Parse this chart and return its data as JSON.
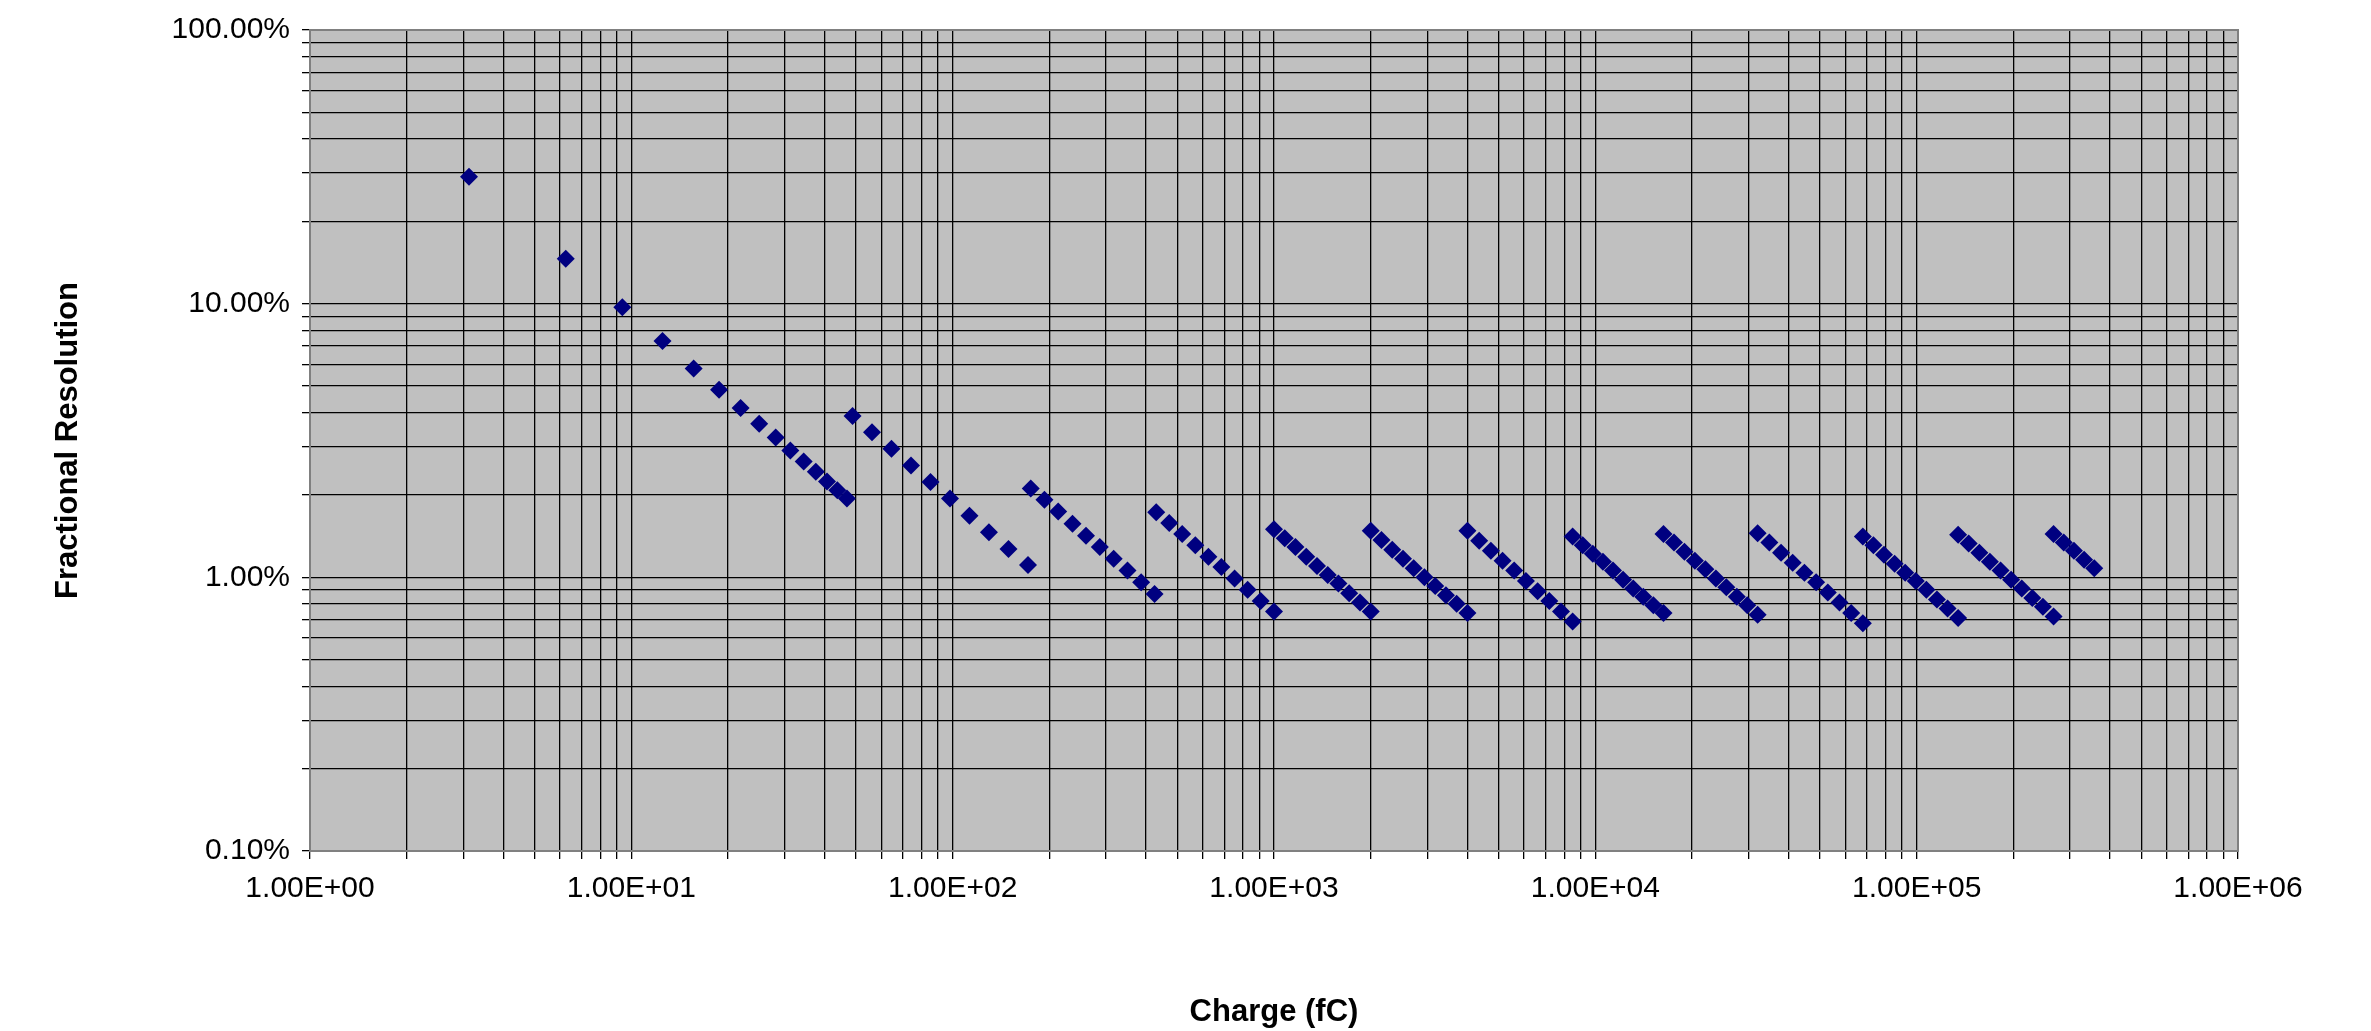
{
  "chart_data": {
    "type": "scatter",
    "xlabel": "Charge (fC)",
    "ylabel": "Fractional Resolution",
    "color": "#000080",
    "marker": "diamond",
    "grid": true,
    "log": "xy",
    "x": [
      3.125,
      6.25,
      9.375,
      12.5,
      15.63,
      18.75,
      21.88,
      25,
      28.13,
      31.25,
      34.38,
      37.5,
      40.63,
      43.75,
      46.88,
      48.8,
      56.1,
      64.5,
      74.2,
      85.3,
      98.1,
      112.8,
      129.7,
      149.2,
      171.6,
      175,
      193,
      213,
      236,
      260,
      287,
      317,
      350,
      386,
      425,
      430,
      472,
      518,
      569,
      625,
      686,
      754,
      828,
      909,
      1000,
      1000,
      1080,
      1166,
      1260,
      1361,
      1470,
      1587,
      1714,
      1852,
      2000,
      2000,
      2160,
      2333,
      2520,
      2721,
      2939,
      3174,
      3428,
      3702,
      4000,
      4000,
      4350,
      4730,
      5143,
      5592,
      6081,
      6612,
      7190,
      7818,
      8500,
      8500,
      9138,
      9823,
      10560,
      11350,
      12200,
      13120,
      14100,
      15160,
      16300,
      16300,
      17570,
      18940,
      20410,
      22000,
      23720,
      25560,
      27560,
      29700,
      32000,
      32000,
      34800,
      37840,
      41140,
      44740,
      48650,
      52900,
      57520,
      62550,
      68000,
      68000,
      73360,
      79140,
      85380,
      92110,
      99370,
      107200,
      115650,
      124760,
      134600,
      134600,
      145200,
      156700,
      169000,
      182400,
      196800,
      212300,
      229000,
      247100,
      266700,
      266700,
      286900,
      308600,
      332000,
      357000
    ],
    "values": [
      29.1,
      14.6,
      9.7,
      7.3,
      5.8,
      4.85,
      4.16,
      3.64,
      3.24,
      2.91,
      2.65,
      2.43,
      2.24,
      2.08,
      1.94,
      3.89,
      3.39,
      2.95,
      2.56,
      2.23,
      1.94,
      1.68,
      1.46,
      1.27,
      1.11,
      2.11,
      1.92,
      1.74,
      1.57,
      1.42,
      1.29,
      1.17,
      1.06,
      0.96,
      0.87,
      1.73,
      1.58,
      1.44,
      1.31,
      1.19,
      1.09,
      0.99,
      0.9,
      0.82,
      0.75,
      1.5,
      1.39,
      1.29,
      1.19,
      1.1,
      1.02,
      0.95,
      0.875,
      0.81,
      0.75,
      1.48,
      1.37,
      1.26,
      1.17,
      1.08,
      1,
      0.93,
      0.86,
      0.8,
      0.74,
      1.48,
      1.36,
      1.25,
      1.15,
      1.06,
      0.97,
      0.89,
      0.82,
      0.75,
      0.69,
      1.41,
      1.31,
      1.22,
      1.14,
      1.06,
      0.98,
      0.91,
      0.85,
      0.79,
      0.74,
      1.44,
      1.34,
      1.24,
      1.15,
      1.07,
      0.99,
      0.92,
      0.85,
      0.79,
      0.73,
      1.45,
      1.34,
      1.23,
      1.13,
      1.04,
      0.96,
      0.88,
      0.81,
      0.74,
      0.68,
      1.41,
      1.31,
      1.21,
      1.12,
      1.04,
      0.97,
      0.9,
      0.83,
      0.77,
      0.71,
      1.43,
      1.33,
      1.23,
      1.14,
      1.06,
      0.98,
      0.91,
      0.84,
      0.78,
      0.72,
      1.44,
      1.34,
      1.25,
      1.16,
      1.08
    ],
    "xlim": [
      1,
      1000000
    ],
    "ylim": [
      0.1,
      100
    ],
    "xticks": [
      {
        "value": 1,
        "label": "1.00E+00"
      },
      {
        "value": 2,
        "label": null
      },
      {
        "value": 3,
        "label": null
      },
      {
        "value": 4,
        "label": null
      },
      {
        "value": 5,
        "label": null
      },
      {
        "value": 6,
        "label": null
      },
      {
        "value": 7,
        "label": null
      },
      {
        "value": 8,
        "label": null
      },
      {
        "value": 9,
        "label": null
      },
      {
        "value": 10,
        "label": "1.00E+01"
      },
      {
        "value": 20,
        "label": null
      },
      {
        "value": 30,
        "label": null
      },
      {
        "value": 40,
        "label": null
      },
      {
        "value": 50,
        "label": null
      },
      {
        "value": 60,
        "label": null
      },
      {
        "value": 70,
        "label": null
      },
      {
        "value": 80,
        "label": null
      },
      {
        "value": 90,
        "label": null
      },
      {
        "value": 100,
        "label": "1.00E+02"
      },
      {
        "value": 200,
        "label": null
      },
      {
        "value": 300,
        "label": null
      },
      {
        "value": 400,
        "label": null
      },
      {
        "value": 500,
        "label": null
      },
      {
        "value": 600,
        "label": null
      },
      {
        "value": 700,
        "label": null
      },
      {
        "value": 800,
        "label": null
      },
      {
        "value": 900,
        "label": null
      },
      {
        "value": 1000,
        "label": "1.00E+03"
      },
      {
        "value": 2000,
        "label": null
      },
      {
        "value": 3000,
        "label": null
      },
      {
        "value": 4000,
        "label": null
      },
      {
        "value": 5000,
        "label": null
      },
      {
        "value": 6000,
        "label": null
      },
      {
        "value": 7000,
        "label": null
      },
      {
        "value": 8000,
        "label": null
      },
      {
        "value": 9000,
        "label": null
      },
      {
        "value": 10000,
        "label": "1.00E+04"
      },
      {
        "value": 20000,
        "label": null
      },
      {
        "value": 30000,
        "label": null
      },
      {
        "value": 40000,
        "label": null
      },
      {
        "value": 50000,
        "label": null
      },
      {
        "value": 60000,
        "label": null
      },
      {
        "value": 70000,
        "label": null
      },
      {
        "value": 80000,
        "label": null
      },
      {
        "value": 90000,
        "label": null
      },
      {
        "value": 100000,
        "label": "1.00E+05"
      },
      {
        "value": 200000,
        "label": null
      },
      {
        "value": 300000,
        "label": null
      },
      {
        "value": 400000,
        "label": null
      },
      {
        "value": 500000,
        "label": null
      },
      {
        "value": 600000,
        "label": null
      },
      {
        "value": 700000,
        "label": null
      },
      {
        "value": 800000,
        "label": null
      },
      {
        "value": 900000,
        "label": null
      },
      {
        "value": 1000000,
        "label": "1.00E+06"
      }
    ],
    "yticks": [
      {
        "value": 0.1,
        "label": "0.10%"
      },
      {
        "value": 0.2,
        "label": null
      },
      {
        "value": 0.3,
        "label": null
      },
      {
        "value": 0.4,
        "label": null
      },
      {
        "value": 0.5,
        "label": null
      },
      {
        "value": 0.6,
        "label": null
      },
      {
        "value": 0.7,
        "label": null
      },
      {
        "value": 0.8,
        "label": null
      },
      {
        "value": 0.9,
        "label": null
      },
      {
        "value": 1,
        "label": "1.00%"
      },
      {
        "value": 2,
        "label": null
      },
      {
        "value": 3,
        "label": null
      },
      {
        "value": 4,
        "label": null
      },
      {
        "value": 5,
        "label": null
      },
      {
        "value": 6,
        "label": null
      },
      {
        "value": 7,
        "label": null
      },
      {
        "value": 8,
        "label": null
      },
      {
        "value": 9,
        "label": null
      },
      {
        "value": 10,
        "label": "10.00%"
      },
      {
        "value": 20,
        "label": null
      },
      {
        "value": 30,
        "label": null
      },
      {
        "value": 40,
        "label": null
      },
      {
        "value": 50,
        "label": null
      },
      {
        "value": 60,
        "label": null
      },
      {
        "value": 70,
        "label": null
      },
      {
        "value": 80,
        "label": null
      },
      {
        "value": 90,
        "label": null
      },
      {
        "value": 100,
        "label": "100.00%"
      }
    ]
  }
}
